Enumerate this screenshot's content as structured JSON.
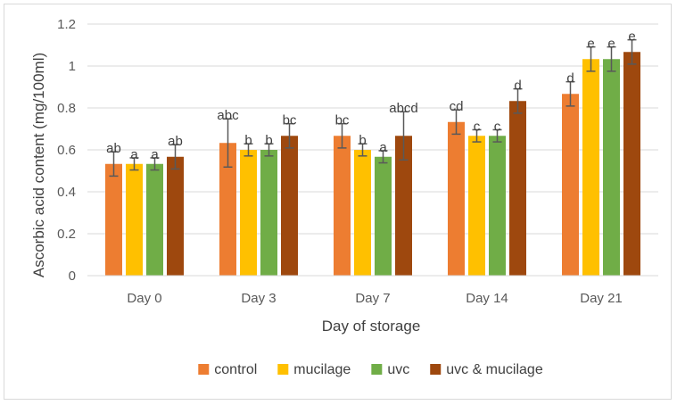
{
  "chart_data": {
    "type": "bar",
    "xlabel": "Day of storage",
    "ylabel": "Ascorbic acid content (mg/100ml)",
    "ylim": [
      0,
      1.2
    ],
    "yticks": [
      "0",
      "0.2",
      "0.4",
      "0.6",
      "0.8",
      "1",
      "1.2"
    ],
    "grid": true,
    "legend_position": "bottom",
    "categories": [
      "Day 0",
      "Day 3",
      "Day 7",
      "Day 14",
      "Day 21"
    ],
    "series": [
      {
        "name": "control",
        "color": "#ED7D31",
        "values": [
          0.533,
          0.633,
          0.667,
          0.733,
          0.867
        ],
        "errors": [
          0.058,
          0.115,
          0.058,
          0.058,
          0.058
        ],
        "labels": [
          "ab",
          "abc",
          "bc",
          "cd",
          "d"
        ]
      },
      {
        "name": "mucilage",
        "color": "#FFC000",
        "values": [
          0.533,
          0.6,
          0.6,
          0.667,
          1.033
        ],
        "errors": [
          0.029,
          0.029,
          0.029,
          0.029,
          0.058
        ],
        "labels": [
          "a",
          "b",
          "b",
          "c",
          "e"
        ]
      },
      {
        "name": "uvc",
        "color": "#70AD47",
        "values": [
          0.533,
          0.6,
          0.567,
          0.667,
          1.033
        ],
        "errors": [
          0.029,
          0.029,
          0.029,
          0.029,
          0.058
        ],
        "labels": [
          "a",
          "b",
          "a",
          "c",
          "e"
        ]
      },
      {
        "name": "uvc & mucilage",
        "color": "#9E480E",
        "values": [
          0.567,
          0.667,
          0.667,
          0.833,
          1.067
        ],
        "errors": [
          0.058,
          0.058,
          0.115,
          0.058,
          0.058
        ],
        "labels": [
          "ab",
          "bc",
          "abcd",
          "d",
          "e"
        ]
      }
    ]
  }
}
